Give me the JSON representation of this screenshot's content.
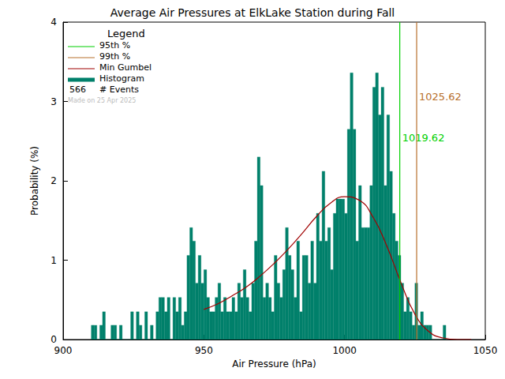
{
  "chart_data": {
    "type": "histogram",
    "title": "Average Air Pressures at ElkLake Station during Fall",
    "x_label": "Air Pressure (hPa)",
    "y_label": "Probability (%)",
    "color": "#00806b",
    "histogram_name": "Histogram",
    "bins": [
      910,
      911,
      912,
      913,
      914,
      915,
      916,
      917,
      918,
      919,
      920,
      921,
      922,
      923,
      924,
      925,
      926,
      927,
      928,
      929,
      930,
      931,
      932,
      933,
      934,
      935,
      936,
      937,
      938,
      939,
      940,
      941,
      942,
      943,
      944,
      945,
      946,
      947,
      948,
      949,
      950,
      951,
      952,
      953,
      954,
      955,
      956,
      957,
      958,
      959,
      960,
      961,
      962,
      963,
      964,
      965,
      966,
      967,
      968,
      969,
      970,
      971,
      972,
      973,
      974,
      975,
      976,
      977,
      978,
      979,
      980,
      981,
      982,
      983,
      984,
      985,
      986,
      987,
      988,
      989,
      990,
      991,
      992,
      993,
      994,
      995,
      996,
      997,
      998,
      999,
      1000,
      1001,
      1002,
      1003,
      1004,
      1005,
      1006,
      1007,
      1008,
      1009,
      1010,
      1011,
      1012,
      1013,
      1014,
      1015,
      1016,
      1017,
      1018,
      1019,
      1020,
      1021,
      1022,
      1023,
      1024,
      1025,
      1026,
      1027,
      1028,
      1029,
      1030,
      1031,
      1032,
      1033,
      1034,
      1035,
      1036
    ],
    "values": [
      0.18,
      0.18,
      0,
      0.18,
      0.35,
      0,
      0,
      0.18,
      0.18,
      0,
      0.18,
      0,
      0,
      0,
      0.35,
      0,
      0.35,
      0.18,
      0,
      0.35,
      0,
      0.18,
      0,
      0.35,
      0.53,
      0.53,
      0.35,
      0.53,
      0,
      0.53,
      0.35,
      0.53,
      0.18,
      0.35,
      1.06,
      1.41,
      1.24,
      0.71,
      1.06,
      0.71,
      0.88,
      0.53,
      0.35,
      0.35,
      0.53,
      0.71,
      0.35,
      0.53,
      0.35,
      0.35,
      0.53,
      0.35,
      0.71,
      0.53,
      0.88,
      0.53,
      0.35,
      0.71,
      1.24,
      2.3,
      1.94,
      0.53,
      0.71,
      0.53,
      0.35,
      1.06,
      0.71,
      0.53,
      0.88,
      1.41,
      1.06,
      0.88,
      0.53,
      1.24,
      0.35,
      1.06,
      1.06,
      0.71,
      1.24,
      0.71,
      1.59,
      1.24,
      2.12,
      1.24,
      1.41,
      0.88,
      1.59,
      1.77,
      1.77,
      1.77,
      1.59,
      2.65,
      3.36,
      2.65,
      1.24,
      1.94,
      1.41,
      1.41,
      1.41,
      1.94,
      3.18,
      3.36,
      2.83,
      3.18,
      1.94,
      2.83,
      2.12,
      1.59,
      1.24,
      1.06,
      0.71,
      0.35,
      0.53,
      0.35,
      0.18,
      0.71,
      0.18,
      0.35,
      0.18,
      0.18,
      0.18,
      0,
      0,
      0,
      0,
      0.18
    ],
    "series": [
      {
        "name": "Min Gumbel",
        "type": "line",
        "color": "#a00000",
        "x": [
          950,
          955,
          960,
          965,
          970,
          975,
          980,
          985,
          990,
          995,
          1000,
          1005,
          1010,
          1015,
          1020,
          1025,
          1030,
          1035,
          1040,
          1045
        ],
        "values": [
          0.38,
          0.45,
          0.55,
          0.66,
          0.8,
          0.96,
          1.14,
          1.34,
          1.55,
          1.72,
          1.8,
          1.76,
          1.55,
          1.18,
          0.72,
          0.32,
          0.1,
          0.02,
          0,
          0
        ]
      }
    ],
    "percentiles": [
      {
        "name": "95th %",
        "value": 1019.62,
        "color": "#00d000"
      },
      {
        "name": "99th %",
        "value": 1025.62,
        "color": "#b8702c"
      }
    ],
    "legend_title": "Legend",
    "events": 566,
    "events_label": "# Events",
    "note": "Made on 25 Apr 2025",
    "xlim": [
      900,
      1050
    ],
    "xticks": [
      900,
      950,
      1000,
      1050
    ],
    "ylim": [
      0,
      4
    ],
    "yticks": [
      0,
      1,
      2,
      3,
      4
    ],
    "legend": "upper left"
  }
}
